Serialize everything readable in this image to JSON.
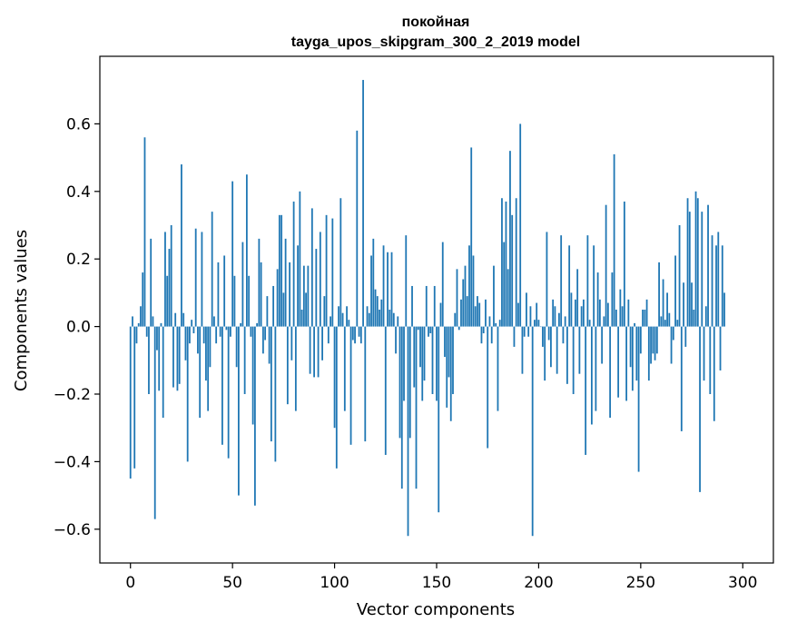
{
  "chart_data": {
    "type": "bar",
    "title": "покойная",
    "subtitle": "tayga_upos_skipgram_300_2_2019 model",
    "xlabel": "Vector components",
    "ylabel": "Components values",
    "xlim": [
      -15,
      315
    ],
    "ylim": [
      -0.7,
      0.8
    ],
    "x_ticks": [
      0,
      50,
      100,
      150,
      200,
      250,
      300
    ],
    "y_ticks": [
      -0.6,
      -0.4,
      -0.2,
      0.0,
      0.2,
      0.4,
      0.6
    ],
    "x_tick_labels": [
      "0",
      "50",
      "100",
      "150",
      "200",
      "250",
      "300"
    ],
    "y_tick_labels": [
      "−0.6",
      "−0.4",
      "−0.2",
      "0.0",
      "0.2",
      "0.4",
      "0.6"
    ],
    "bar_color": "#1f77b4",
    "values": [
      -0.45,
      0.03,
      -0.42,
      -0.05,
      0.01,
      0.06,
      0.16,
      0.56,
      -0.03,
      -0.2,
      0.26,
      0.03,
      -0.57,
      -0.07,
      -0.19,
      0.01,
      -0.27,
      0.28,
      0.15,
      0.23,
      0.3,
      -0.18,
      0.04,
      -0.19,
      -0.17,
      0.48,
      0.04,
      -0.1,
      -0.4,
      -0.05,
      0.02,
      -0.02,
      0.29,
      -0.08,
      -0.27,
      0.28,
      -0.05,
      -0.16,
      -0.25,
      -0.12,
      0.34,
      0.03,
      -0.05,
      0.19,
      -0.03,
      -0.35,
      0.21,
      -0.01,
      -0.39,
      -0.03,
      0.43,
      0.15,
      -0.12,
      -0.5,
      0.01,
      0.25,
      -0.2,
      0.45,
      0.15,
      -0.03,
      -0.29,
      -0.53,
      0.01,
      0.26,
      0.19,
      -0.08,
      -0.04,
      0.09,
      -0.11,
      -0.34,
      0.12,
      -0.4,
      0.17,
      0.33,
      0.33,
      0.1,
      0.26,
      -0.23,
      0.19,
      -0.1,
      0.37,
      -0.25,
      0.24,
      0.4,
      0.05,
      0.18,
      0.1,
      0.18,
      -0.14,
      0.35,
      -0.15,
      0.23,
      -0.15,
      0.28,
      -0.1,
      0.09,
      0.33,
      -0.05,
      0.03,
      0.32,
      -0.3,
      -0.42,
      0.06,
      0.38,
      0.04,
      -0.25,
      0.06,
      0.02,
      -0.35,
      -0.04,
      -0.05,
      0.58,
      -0.03,
      -0.05,
      0.73,
      -0.34,
      0.06,
      0.04,
      0.21,
      0.26,
      0.11,
      0.09,
      0.05,
      0.08,
      0.24,
      -0.38,
      0.22,
      0.05,
      0.22,
      0.04,
      -0.08,
      0.03,
      -0.33,
      -0.48,
      -0.22,
      0.27,
      -0.62,
      -0.33,
      0.12,
      -0.18,
      -0.48,
      -0.01,
      -0.12,
      -0.22,
      -0.16,
      0.12,
      -0.03,
      -0.02,
      -0.2,
      0.12,
      -0.22,
      -0.55,
      0.07,
      0.25,
      -0.09,
      -0.24,
      -0.15,
      -0.28,
      -0.2,
      0.04,
      0.17,
      -0.01,
      0.08,
      0.14,
      0.18,
      0.09,
      0.24,
      0.53,
      0.21,
      0.06,
      0.09,
      0.07,
      -0.05,
      -0.02,
      0.08,
      -0.36,
      0.03,
      -0.05,
      0.18,
      0.01,
      -0.25,
      0.02,
      0.38,
      0.25,
      0.37,
      0.17,
      0.52,
      0.33,
      -0.06,
      0.38,
      0.07,
      0.6,
      -0.14,
      -0.03,
      0.1,
      -0.03,
      0.06,
      -0.62,
      0.02,
      0.07,
      0.02,
      0.0,
      -0.06,
      -0.16,
      0.28,
      -0.04,
      -0.12,
      0.08,
      0.06,
      -0.14,
      0.04,
      0.27,
      -0.05,
      0.03,
      -0.17,
      0.24,
      0.1,
      -0.2,
      0.08,
      0.17,
      -0.14,
      0.06,
      0.08,
      -0.38,
      0.27,
      0.02,
      -0.29,
      0.24,
      -0.25,
      0.16,
      0.08,
      -0.11,
      0.03,
      0.36,
      0.07,
      -0.27,
      0.16,
      0.51,
      0.05,
      -0.21,
      0.11,
      0.06,
      0.37,
      -0.22,
      0.08,
      -0.12,
      -0.19,
      0.01,
      -0.16,
      -0.43,
      -0.08,
      0.05,
      0.05,
      0.08,
      -0.16,
      -0.11,
      -0.08,
      -0.1,
      -0.08,
      0.19,
      0.03,
      0.14,
      0.02,
      0.1,
      0.04,
      -0.11,
      -0.04,
      0.21,
      0.02,
      0.3,
      -0.31,
      0.13,
      -0.06,
      0.38,
      0.34,
      0.13,
      0.05,
      0.4,
      0.38,
      -0.49,
      0.34,
      -0.16,
      0.06,
      0.36,
      -0.2,
      0.27,
      -0.28,
      0.24,
      0.28,
      -0.13,
      0.24,
      0.1
    ]
  }
}
